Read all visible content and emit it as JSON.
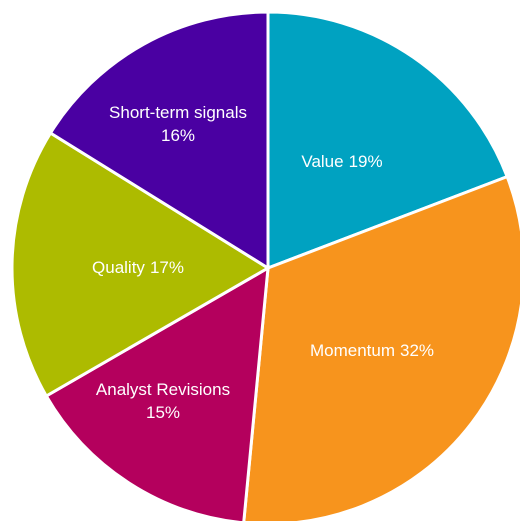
{
  "chart_data": {
    "type": "pie",
    "categories": [
      "Value",
      "Momentum",
      "Analyst Revisions",
      "Quality",
      "Short-term signals"
    ],
    "values": [
      19,
      32,
      15,
      17,
      16
    ],
    "value_labels": [
      "19%",
      "32%",
      "15%",
      "17%",
      "16%"
    ],
    "colors": [
      "#00a2c1",
      "#f7941d",
      "#b4005d",
      "#adbb00",
      "#4a00a2"
    ]
  }
}
